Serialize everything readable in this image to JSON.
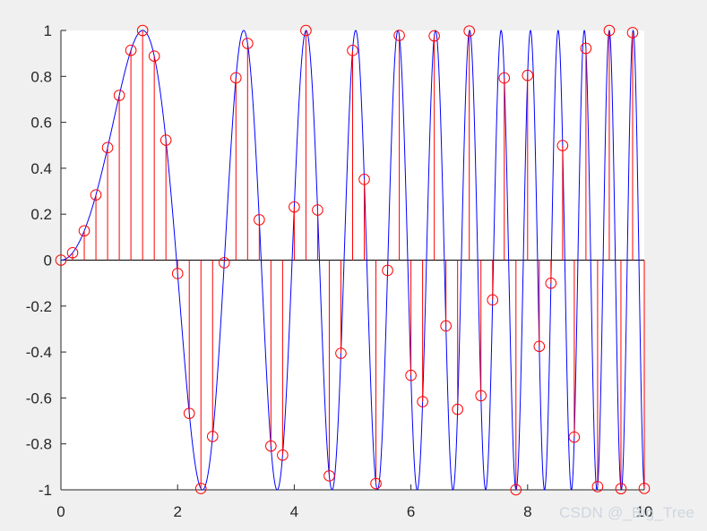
{
  "chart_data": {
    "type": "line",
    "title": "",
    "xlabel": "",
    "ylabel": "",
    "xlim": [
      0,
      10
    ],
    "ylim": [
      -1,
      1
    ],
    "grid": false,
    "legend": "none",
    "x_ticks": [
      0,
      2,
      4,
      6,
      8,
      10
    ],
    "y_ticks": [
      -1,
      -0.8,
      -0.6,
      -0.4,
      -0.2,
      0,
      0.2,
      0.4,
      0.6,
      0.8,
      1
    ],
    "x_tick_labels": [
      "0",
      "2",
      "4",
      "6",
      "8",
      "10"
    ],
    "y_tick_labels": [
      "-1",
      "-0.8",
      "-0.6",
      "-0.4",
      "-0.2",
      "0",
      "0.2",
      "0.4",
      "0.6",
      "0.8",
      "1"
    ],
    "series": [
      {
        "kind": "continuous-line",
        "color": "#0000ff",
        "function": "sin(0.8*x^2)",
        "x_start": 0,
        "x_end": 10
      },
      {
        "kind": "stem",
        "color": "#ff0000",
        "marker": "circle",
        "x_start": 0,
        "x_step": 0.2,
        "count": 51,
        "function": "sin(0.8*x^2)"
      }
    ]
  },
  "watermark": "CSDN @_Big_Tree",
  "colors": {
    "figure_background": "#f0f0f0",
    "axes_background": "#ffffff",
    "axis_color": "#262626",
    "line_color": "#0000ff",
    "stem_color": "#ff0000"
  }
}
